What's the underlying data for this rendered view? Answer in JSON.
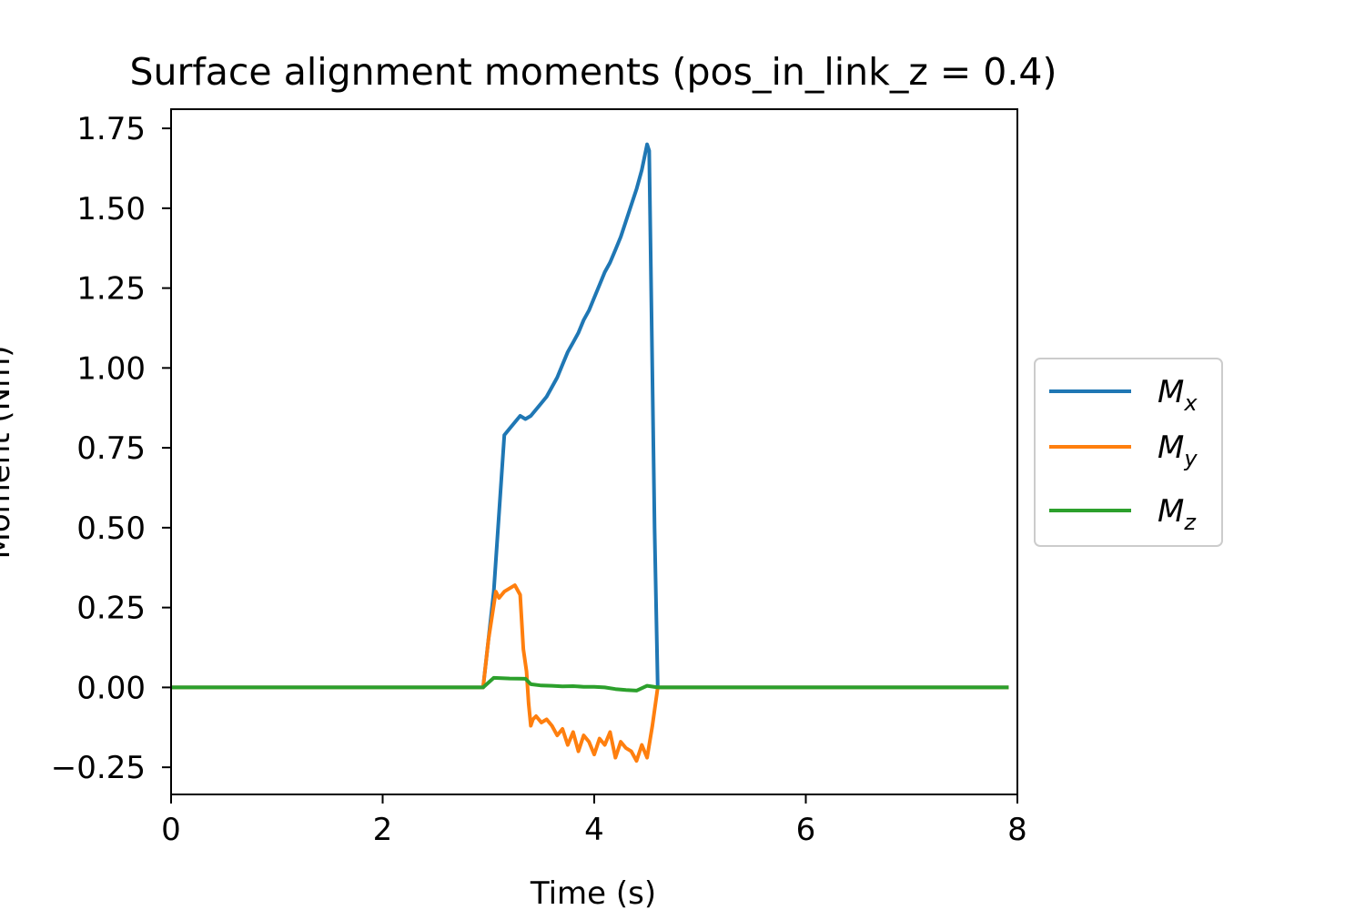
{
  "chart_data": {
    "type": "line",
    "title": "Surface alignment moments (pos_in_link_z = 0.4)",
    "xlabel": "Time (s)",
    "ylabel": "Moment (Nm)",
    "xlim": [
      0,
      8
    ],
    "ylim": [
      -0.335,
      1.81
    ],
    "xticks": [
      0,
      2,
      4,
      6,
      8
    ],
    "yticks": [
      -0.25,
      0.0,
      0.25,
      0.5,
      0.75,
      1.0,
      1.25,
      1.5,
      1.75
    ],
    "xtick_labels": [
      "0",
      "2",
      "4",
      "6",
      "8"
    ],
    "ytick_labels": [
      "−0.25",
      "0.00",
      "0.25",
      "0.50",
      "0.75",
      "1.00",
      "1.25",
      "1.50",
      "1.75"
    ],
    "grid": false,
    "legend_position": "outside-right",
    "series": [
      {
        "name": "Mx",
        "label_main": "M",
        "label_sub": "x",
        "color": "#1f77b4",
        "x": [
          0,
          2.95,
          3.05,
          3.15,
          3.2,
          3.25,
          3.3,
          3.35,
          3.4,
          3.45,
          3.5,
          3.55,
          3.6,
          3.65,
          3.7,
          3.75,
          3.8,
          3.85,
          3.9,
          3.95,
          4.0,
          4.05,
          4.1,
          4.15,
          4.2,
          4.25,
          4.3,
          4.35,
          4.4,
          4.45,
          4.5,
          4.52,
          4.57,
          4.6,
          7.9
        ],
        "y": [
          0,
          0,
          0.3,
          0.79,
          0.81,
          0.83,
          0.85,
          0.84,
          0.85,
          0.87,
          0.89,
          0.91,
          0.94,
          0.97,
          1.01,
          1.05,
          1.08,
          1.11,
          1.15,
          1.18,
          1.22,
          1.26,
          1.3,
          1.33,
          1.37,
          1.41,
          1.46,
          1.51,
          1.56,
          1.62,
          1.7,
          1.68,
          0.5,
          0,
          0
        ]
      },
      {
        "name": "My",
        "label_main": "M",
        "label_sub": "y",
        "color": "#ff7f0e",
        "x": [
          0,
          2.95,
          3.0,
          3.07,
          3.1,
          3.15,
          3.2,
          3.25,
          3.3,
          3.33,
          3.36,
          3.38,
          3.4,
          3.42,
          3.45,
          3.5,
          3.55,
          3.6,
          3.65,
          3.7,
          3.75,
          3.8,
          3.85,
          3.9,
          3.95,
          4.0,
          4.05,
          4.1,
          4.15,
          4.2,
          4.25,
          4.3,
          4.35,
          4.4,
          4.45,
          4.5,
          4.55,
          4.6,
          7.9
        ],
        "y": [
          0,
          0,
          0.15,
          0.3,
          0.28,
          0.3,
          0.31,
          0.32,
          0.29,
          0.12,
          0.05,
          -0.05,
          -0.12,
          -0.1,
          -0.09,
          -0.11,
          -0.1,
          -0.12,
          -0.15,
          -0.13,
          -0.18,
          -0.14,
          -0.2,
          -0.15,
          -0.17,
          -0.21,
          -0.16,
          -0.18,
          -0.14,
          -0.22,
          -0.17,
          -0.19,
          -0.2,
          -0.23,
          -0.18,
          -0.22,
          -0.12,
          0,
          0
        ]
      },
      {
        "name": "Mz",
        "label_main": "M",
        "label_sub": "z",
        "color": "#2ca02c",
        "x": [
          0,
          2.95,
          3.05,
          3.2,
          3.35,
          3.4,
          3.5,
          3.6,
          3.7,
          3.8,
          3.9,
          4.0,
          4.1,
          4.2,
          4.3,
          4.4,
          4.5,
          4.6,
          7.9
        ],
        "y": [
          0,
          0,
          0.03,
          0.028,
          0.027,
          0.01,
          0.006,
          0.005,
          0.003,
          0.004,
          0.002,
          0.002,
          0.0,
          -0.005,
          -0.008,
          -0.01,
          0.005,
          0.0,
          0
        ]
      }
    ]
  }
}
